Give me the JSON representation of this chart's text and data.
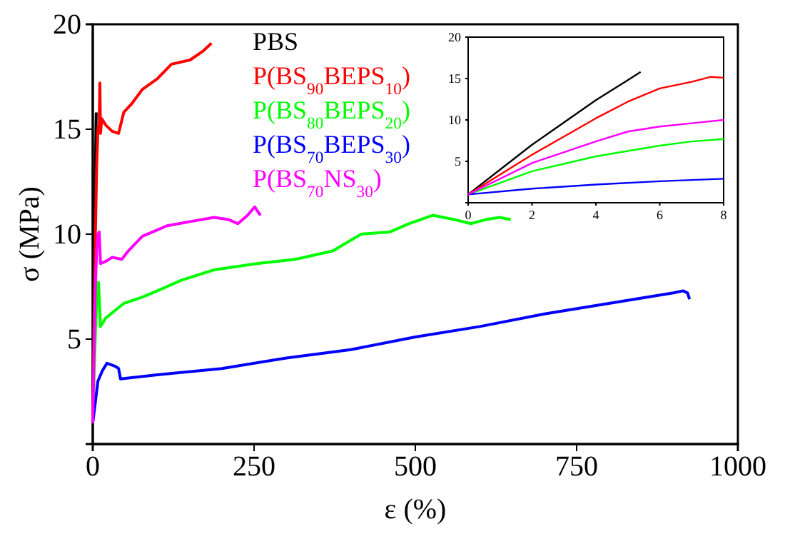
{
  "chart_data": [
    {
      "type": "line",
      "xlabel": "ε (%)",
      "ylabel": "σ (MPa)",
      "xlim": [
        0,
        1000
      ],
      "xticks": [
        0,
        250,
        500,
        750,
        1000
      ],
      "ylim": [
        0,
        20
      ],
      "yticks": [
        5,
        10,
        15,
        20
      ],
      "legend": "top left",
      "grid": false,
      "series": [
        {
          "name": "PBS",
          "color": "#000000",
          "x": [
            0,
            1,
            2,
            3,
            4,
            5,
            5.4
          ],
          "values": [
            1,
            4.2,
            7.2,
            10,
            12.8,
            15.2,
            15.8
          ]
        },
        {
          "name": "P(BS$_{90}$BEPS$_{10}$)",
          "color": "#ff0000",
          "x": [
            0,
            2,
            4,
            6,
            8,
            10,
            11,
            12,
            14,
            20,
            30,
            40,
            48,
            60,
            77,
            100,
            122,
            151,
            170,
            184
          ],
          "values": [
            1,
            5.5,
            9.8,
            13.2,
            15,
            15.3,
            17.2,
            14.8,
            15.5,
            15.2,
            14.9,
            14.8,
            15.8,
            16.2,
            16.9,
            17.4,
            18.1,
            18.3,
            18.7,
            19.1
          ]
        },
        {
          "name": "P(BS$_{80}$BEPS$_{20}$)",
          "color": "#00ff00",
          "x": [
            0,
            2,
            4,
            6,
            8,
            9,
            12,
            20,
            48,
            77,
            100,
            137,
            188,
            254,
            314,
            372,
            416,
            460,
            490,
            527,
            560,
            586,
            610,
            630,
            648
          ],
          "values": [
            1,
            3.2,
            5.2,
            6.6,
            7.7,
            7.7,
            5.6,
            6.0,
            6.7,
            7.0,
            7.3,
            7.8,
            8.3,
            8.6,
            8.8,
            9.2,
            10.0,
            10.1,
            10.5,
            10.9,
            10.7,
            10.5,
            10.7,
            10.8,
            10.7
          ]
        },
        {
          "name": "P(BS$_{70}$BEPS$_{30}$)",
          "color": "#0000ff",
          "x": [
            0,
            2,
            4,
            6,
            8,
            15,
            22,
            35,
            40,
            43,
            100,
            200,
            300,
            400,
            500,
            600,
            700,
            800,
            900,
            915,
            922,
            925
          ],
          "values": [
            1,
            1.5,
            2,
            2.5,
            3,
            3.5,
            3.85,
            3.7,
            3.6,
            3.1,
            3.3,
            3.6,
            4.1,
            4.5,
            5.1,
            5.6,
            6.2,
            6.7,
            7.2,
            7.3,
            7.2,
            6.9
          ]
        },
        {
          "name": "P(BS$_{70}$NS$_{30}$)",
          "color": "#ff00ff",
          "x": [
            0,
            2,
            4,
            6,
            8,
            10,
            12,
            20,
            30,
            45,
            55,
            77,
            100,
            115,
            151,
            188,
            210,
            225,
            240,
            251,
            260
          ],
          "values": [
            1,
            4.5,
            7.5,
            9.2,
            10,
            10.1,
            8.6,
            8.7,
            8.9,
            8.8,
            9.2,
            9.9,
            10.2,
            10.4,
            10.6,
            10.8,
            10.7,
            10.5,
            10.9,
            11.3,
            10.9
          ]
        }
      ]
    },
    {
      "type": "line",
      "xlim": [
        0,
        8
      ],
      "xticks": [
        0,
        2,
        4,
        6,
        8
      ],
      "ylim": [
        0,
        20
      ],
      "yticks": [
        5,
        10,
        15,
        20
      ],
      "grid": false,
      "series": [
        {
          "color": "#000000",
          "x": [
            0,
            2,
            4,
            5,
            5.4
          ],
          "values": [
            1,
            7,
            12.4,
            14.8,
            15.8
          ]
        },
        {
          "color": "#ff0000",
          "x": [
            0,
            2,
            4,
            5,
            5.5,
            6,
            7,
            7.6,
            8
          ],
          "values": [
            1,
            5.8,
            10.2,
            12.2,
            13,
            13.8,
            14.6,
            15.2,
            15.1
          ]
        },
        {
          "color": "#00ff00",
          "x": [
            0,
            2,
            4,
            6,
            7,
            8
          ],
          "values": [
            1,
            3.8,
            5.6,
            6.9,
            7.4,
            7.7
          ]
        },
        {
          "color": "#0000ff",
          "x": [
            0,
            2,
            4,
            6,
            8
          ],
          "values": [
            1,
            1.7,
            2.2,
            2.6,
            2.9
          ]
        },
        {
          "color": "#ff00ff",
          "x": [
            0,
            2,
            4,
            5,
            6,
            7,
            8
          ],
          "values": [
            1,
            4.8,
            7.4,
            8.6,
            9.2,
            9.6,
            10
          ]
        }
      ]
    }
  ]
}
